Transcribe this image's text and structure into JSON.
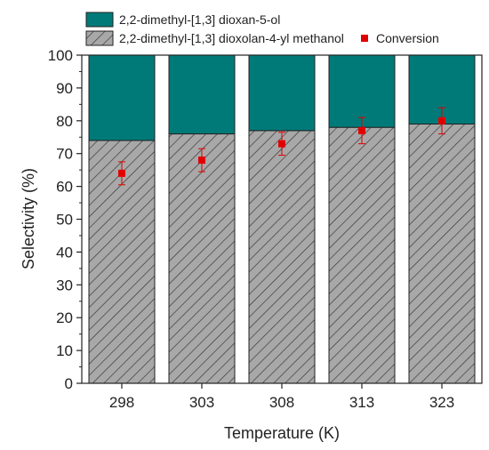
{
  "chart_data": {
    "type": "bar",
    "stacked": true,
    "xlabel": "Temperature (K)",
    "ylabel": "Selectivity (%)",
    "categories": [
      "298",
      "303",
      "308",
      "313",
      "323"
    ],
    "ylim": [
      0,
      100
    ],
    "yticks": [
      0,
      10,
      20,
      30,
      40,
      50,
      60,
      70,
      80,
      90,
      100
    ],
    "series": [
      {
        "name": "2,2-dimethyl-[1,3] dioxolan-4-yl methanol",
        "values": [
          74,
          76,
          77,
          78,
          79
        ],
        "color": "#a8a8a8",
        "pattern": "diagonal-hatch"
      },
      {
        "name": "2,2-dimethyl-[1,3] dioxan-5-ol",
        "values": [
          26,
          24,
          23,
          22,
          21
        ],
        "color": "#007a78"
      }
    ],
    "scatter": {
      "name": "Conversion",
      "values": [
        64,
        68,
        73,
        77,
        80
      ],
      "error": [
        3.5,
        3.5,
        3.5,
        4,
        4
      ],
      "color": "#e00000"
    },
    "legend_position": "top",
    "grid": false
  }
}
